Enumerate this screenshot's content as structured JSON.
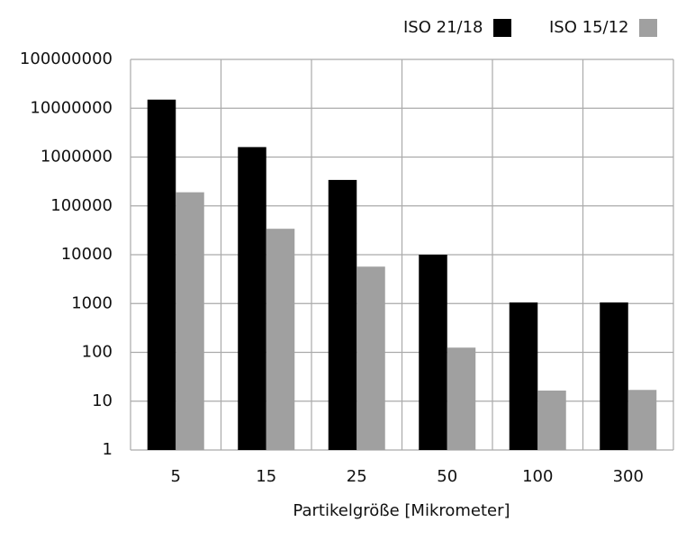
{
  "chart_data": {
    "type": "bar",
    "log_scale": true,
    "grid": true,
    "legend": "top-right",
    "x_label": "Partikelgröße [Mikrometer]",
    "categories": [
      "5",
      "15",
      "25",
      "50",
      "100",
      "300"
    ],
    "series": [
      {
        "name": "ISO 21/18",
        "color": "#000000",
        "values": [
          15000000,
          1600000,
          340000,
          10000,
          1050,
          1050
        ]
      },
      {
        "name": "ISO 15/12",
        "color": "#a0a0a0",
        "values": [
          190000,
          34000,
          5700,
          125,
          16.5,
          17
        ]
      }
    ],
    "ylim": [
      1,
      100000000
    ],
    "yticks": [
      1,
      10,
      100,
      1000,
      10000,
      100000,
      1000000,
      10000000,
      100000000
    ]
  }
}
